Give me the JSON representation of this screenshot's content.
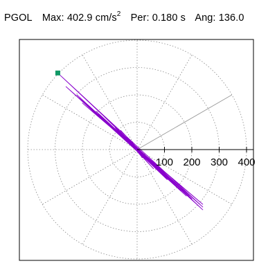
{
  "header": {
    "station": "PGOL",
    "max_label": "Max:",
    "max_value": "402.9",
    "max_unit": "cm/s",
    "max_unit_exp": "2",
    "per_label": "Per:",
    "per_value": "0.180 s",
    "ang_label": "Ang:",
    "ang_value": "136.0"
  },
  "chart_data": {
    "type": "scatter",
    "title": "",
    "coordinate_system": "polar",
    "radial_max": 400,
    "radial_ticks": [
      100,
      200,
      300,
      400
    ],
    "radial_tick_labels": [
      "100",
      "200",
      "300",
      "400"
    ],
    "angular_gridlines_deg": [
      0,
      30,
      60,
      90,
      120,
      150,
      180,
      210,
      240,
      270,
      300,
      330
    ],
    "highlighted_direction_deg": 30,
    "grid": "dotted",
    "peak_marker": {
      "x": -290,
      "y": 280,
      "label": ""
    },
    "trace_color": "#8800cc",
    "marker_color": "#119966",
    "series": [
      {
        "name": "",
        "x": [
          0,
          20,
          -40,
          60,
          -80,
          110,
          -150,
          130,
          -220,
          180,
          -260,
          240,
          -290,
          200,
          -180,
          240,
          -120,
          160,
          -210,
          190,
          -140,
          110,
          -60,
          90,
          -130,
          150,
          -200,
          240,
          -170,
          130,
          -90,
          70,
          -40,
          30,
          -20,
          10,
          -5,
          0
        ],
        "y": [
          0,
          -30,
          40,
          -70,
          80,
          -100,
          140,
          -120,
          200,
          -170,
          230,
          -210,
          280,
          -180,
          160,
          -220,
          120,
          -150,
          190,
          -170,
          130,
          -110,
          70,
          -90,
          120,
          -130,
          170,
          -200,
          150,
          -120,
          80,
          -60,
          40,
          -30,
          20,
          -10,
          5,
          0
        ]
      }
    ]
  }
}
